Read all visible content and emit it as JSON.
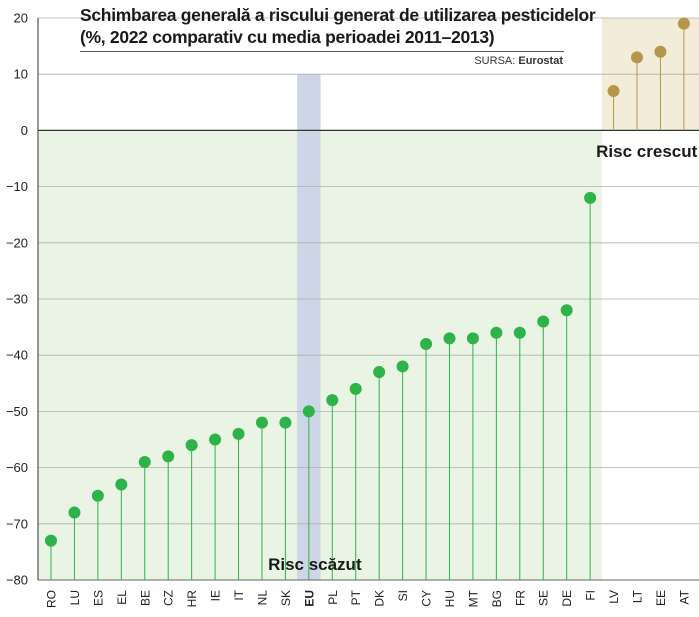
{
  "title_line1": "Schimbarea generală a riscului generat de utilizarea pesticidelor",
  "title_line2": "(%, 2022 comparativ cu media perioadei 2011–2013)",
  "source_prefix": "SURSA:",
  "source_name": "Eurostat",
  "colors": {
    "decrease": "#2db34a",
    "decrease_bg": "#e9f4e4",
    "increase": "#b5974b",
    "increase_bg": "#f3ecd9",
    "eu_band": "#cdd6e6"
  },
  "chart_data": {
    "type": "lollipop",
    "categories": [
      "RO",
      "LU",
      "ES",
      "EL",
      "BE",
      "CZ",
      "HR",
      "IE",
      "IT",
      "NL",
      "SK",
      "EU",
      "PL",
      "PT",
      "DK",
      "SI",
      "CY",
      "HU",
      "MT",
      "BG",
      "FR",
      "SE",
      "DE",
      "FI",
      "LV",
      "LT",
      "EE",
      "AT"
    ],
    "values": [
      -73,
      -68,
      -65,
      -63,
      -59,
      -58,
      -56,
      -55,
      -54,
      -52,
      -52,
      -50,
      -48,
      -46,
      -43,
      -42,
      -38,
      -37,
      -37,
      -36,
      -36,
      -34,
      -32,
      -12,
      7,
      13,
      14,
      19
    ],
    "highlight_category": "EU",
    "ylim": [
      -80,
      20
    ],
    "yticks": [
      20,
      10,
      0,
      -10,
      -20,
      -30,
      -40,
      -50,
      -60,
      -70,
      -80
    ],
    "annotations": {
      "decrease": "Risc scăzut",
      "increase": "Risc crescut"
    },
    "xlabel": "",
    "ylabel": ""
  }
}
